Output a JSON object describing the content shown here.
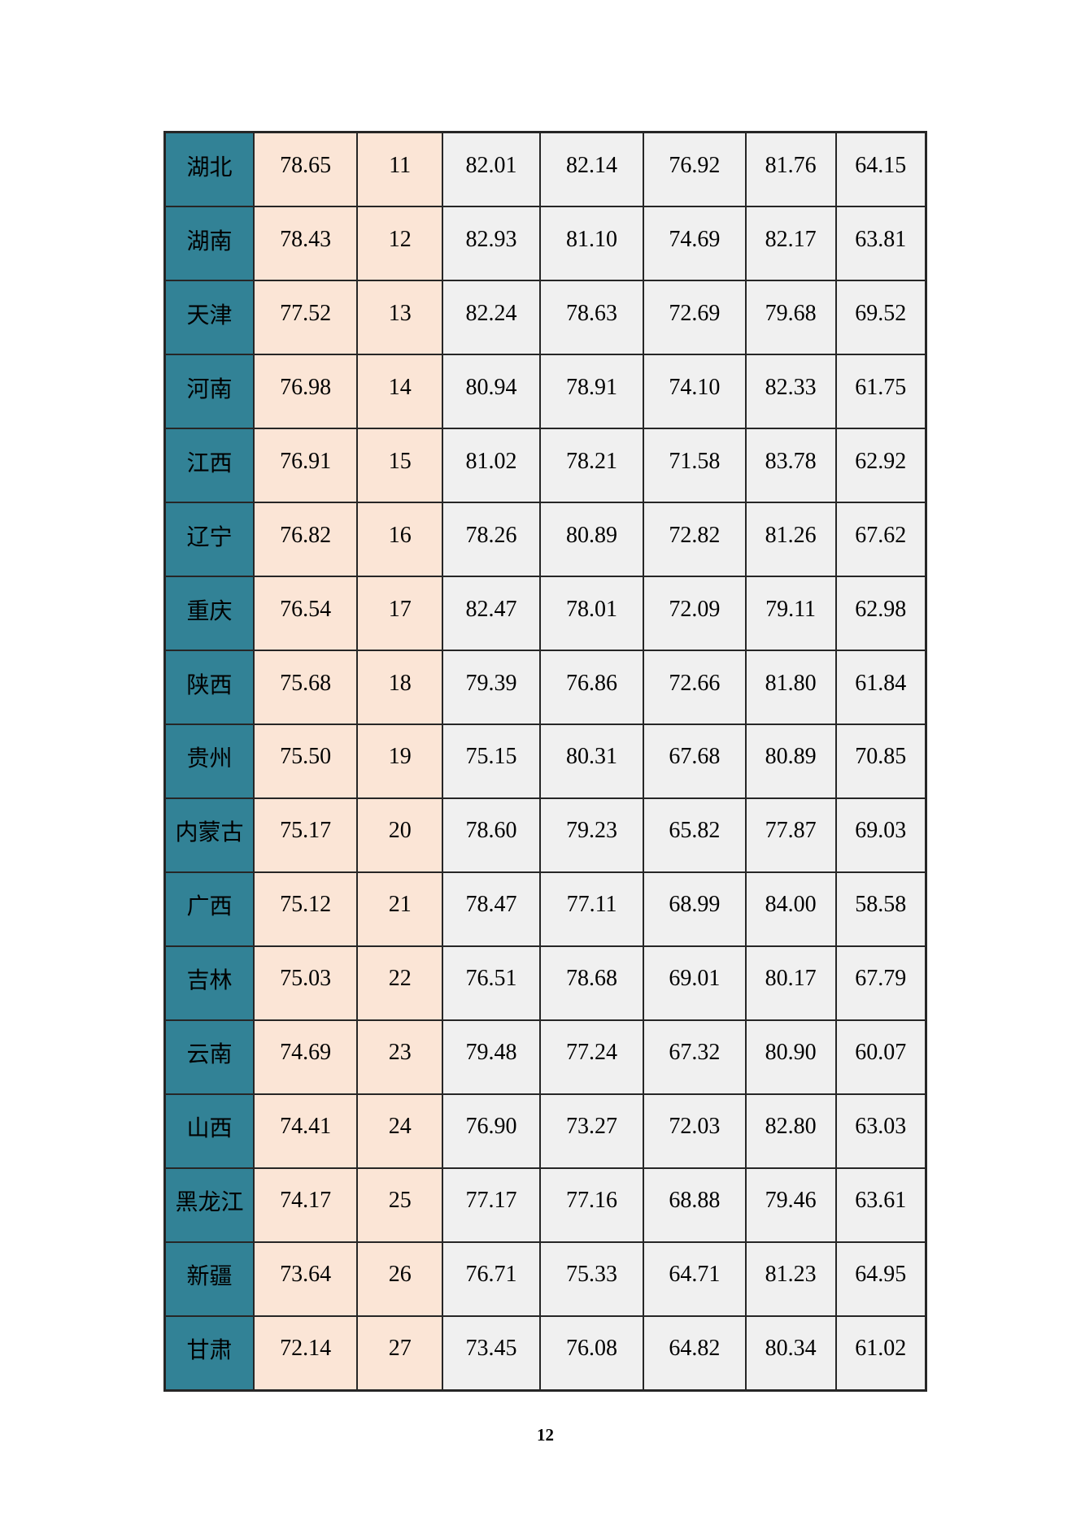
{
  "page": {
    "number": "12"
  },
  "colors": {
    "province_bg": "#328296",
    "province_text": "#FFFFFF",
    "score_bg": "#FBE5D6",
    "data_bg": "#F0F0F0",
    "border": "#262626",
    "page_bg": "#FFFFFF"
  },
  "table": {
    "rows": [
      {
        "province": "湖北",
        "values": [
          "78.65",
          "11",
          "82.01",
          "82.14",
          "76.92",
          "81.76",
          "64.15"
        ]
      },
      {
        "province": "湖南",
        "values": [
          "78.43",
          "12",
          "82.93",
          "81.10",
          "74.69",
          "82.17",
          "63.81"
        ]
      },
      {
        "province": "天津",
        "values": [
          "77.52",
          "13",
          "82.24",
          "78.63",
          "72.69",
          "79.68",
          "69.52"
        ]
      },
      {
        "province": "河南",
        "values": [
          "76.98",
          "14",
          "80.94",
          "78.91",
          "74.10",
          "82.33",
          "61.75"
        ]
      },
      {
        "province": "江西",
        "values": [
          "76.91",
          "15",
          "81.02",
          "78.21",
          "71.58",
          "83.78",
          "62.92"
        ]
      },
      {
        "province": "辽宁",
        "values": [
          "76.82",
          "16",
          "78.26",
          "80.89",
          "72.82",
          "81.26",
          "67.62"
        ]
      },
      {
        "province": "重庆",
        "values": [
          "76.54",
          "17",
          "82.47",
          "78.01",
          "72.09",
          "79.11",
          "62.98"
        ]
      },
      {
        "province": "陕西",
        "values": [
          "75.68",
          "18",
          "79.39",
          "76.86",
          "72.66",
          "81.80",
          "61.84"
        ]
      },
      {
        "province": "贵州",
        "values": [
          "75.50",
          "19",
          "75.15",
          "80.31",
          "67.68",
          "80.89",
          "70.85"
        ]
      },
      {
        "province": "内蒙古",
        "values": [
          "75.17",
          "20",
          "78.60",
          "79.23",
          "65.82",
          "77.87",
          "69.03"
        ]
      },
      {
        "province": "广西",
        "values": [
          "75.12",
          "21",
          "78.47",
          "77.11",
          "68.99",
          "84.00",
          "58.58"
        ]
      },
      {
        "province": "吉林",
        "values": [
          "75.03",
          "22",
          "76.51",
          "78.68",
          "69.01",
          "80.17",
          "67.79"
        ]
      },
      {
        "province": "云南",
        "values": [
          "74.69",
          "23",
          "79.48",
          "77.24",
          "67.32",
          "80.90",
          "60.07"
        ]
      },
      {
        "province": "山西",
        "values": [
          "74.41",
          "24",
          "76.90",
          "73.27",
          "72.03",
          "82.80",
          "63.03"
        ]
      },
      {
        "province": "黑龙江",
        "values": [
          "74.17",
          "25",
          "77.17",
          "77.16",
          "68.88",
          "79.46",
          "63.61"
        ]
      },
      {
        "province": "新疆",
        "values": [
          "73.64",
          "26",
          "76.71",
          "75.33",
          "64.71",
          "81.23",
          "64.95"
        ]
      },
      {
        "province": "甘肃",
        "values": [
          "72.14",
          "27",
          "73.45",
          "76.08",
          "64.82",
          "80.34",
          "61.02"
        ]
      }
    ]
  }
}
